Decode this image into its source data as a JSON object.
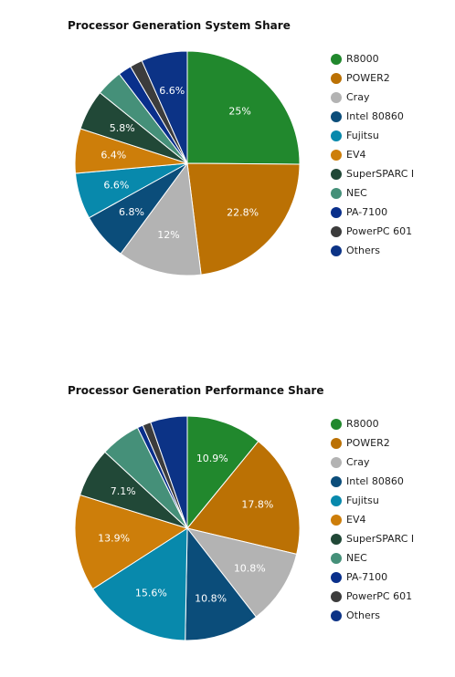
{
  "chart_data": [
    {
      "type": "pie",
      "title": "Processor Generation System Share",
      "categories": [
        "R8000",
        "POWER2",
        "Cray",
        "Intel 80860",
        "Fujitsu",
        "EV4",
        "SuperSPARC I",
        "NEC",
        "PA-7100",
        "PowerPC 601",
        "Others"
      ],
      "values": [
        25,
        22.8,
        12,
        6.8,
        6.6,
        6.4,
        5.8,
        3.8,
        1.9,
        1.8,
        6.6
      ],
      "labels": [
        "25%",
        "22.8%",
        "12%",
        "6.8%",
        "6.6%",
        "6.4%",
        "5.8%",
        "",
        "",
        "",
        "6.6%"
      ],
      "legend_position": "right"
    },
    {
      "type": "pie",
      "title": "Processor Generation Performance Share",
      "categories": [
        "R8000",
        "POWER2",
        "Cray",
        "Intel 80860",
        "Fujitsu",
        "EV4",
        "SuperSPARC I",
        "NEC",
        "PA-7100",
        "PowerPC 601",
        "Others"
      ],
      "values": [
        10.9,
        17.8,
        10.8,
        10.8,
        15.6,
        13.9,
        7.1,
        5.8,
        0.8,
        1.2,
        5.3
      ],
      "labels": [
        "10.9%",
        "17.8%",
        "10.8%",
        "10.8%",
        "15.6%",
        "13.9%",
        "7.1%",
        "",
        "",
        "",
        ""
      ],
      "legend_position": "right"
    }
  ],
  "colors": [
    "#21882d",
    "#bb7104",
    "#b3b3b3",
    "#0b4d7a",
    "#0889ac",
    "#cd7e0a",
    "#214837",
    "#459079",
    "#092f8b",
    "#3c3c3c",
    "#0c3386"
  ]
}
